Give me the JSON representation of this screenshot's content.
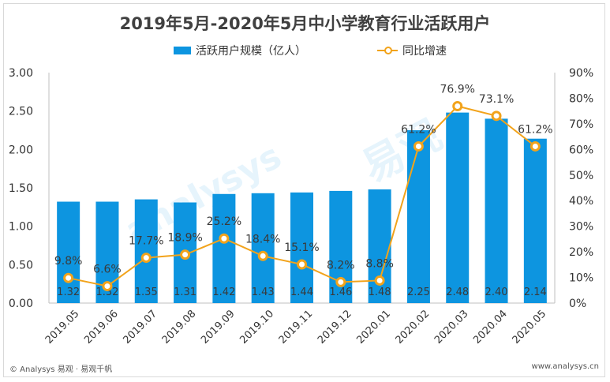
{
  "title": "2019年5月-2020年5月中小学教育行业活跃用户",
  "legend": {
    "bar_label": "活跃用户规模（亿人）",
    "line_label": "同比增速"
  },
  "footer": {
    "left": "© Analysys 易观 · 易观千帆",
    "right": "www.analysys.cn"
  },
  "watermark": {
    "text1": "analysys",
    "text2": "易观"
  },
  "colors": {
    "bar": "#0d95e0",
    "line": "#f2a31b",
    "axis_text": "#333333"
  },
  "chart_data": {
    "type": "bar",
    "categories": [
      "2019.05",
      "2019.06",
      "2019.07",
      "2019.08",
      "2019.09",
      "2019.10",
      "2019.11",
      "2019.12",
      "2020.01",
      "2020.02",
      "2020.03",
      "2020.04",
      "2020.05"
    ],
    "series": [
      {
        "name": "活跃用户规模（亿人）",
        "type": "bar",
        "axis": "left",
        "values": [
          1.32,
          1.32,
          1.35,
          1.31,
          1.42,
          1.43,
          1.44,
          1.46,
          1.48,
          2.25,
          2.48,
          2.4,
          2.14
        ],
        "labels": [
          "1.32",
          "1.32",
          "1.35",
          "1.31",
          "1.42",
          "1.43",
          "1.44",
          "1.46",
          "1.48",
          "2.25",
          "2.48",
          "2.40",
          "2.14"
        ]
      },
      {
        "name": "同比增速",
        "type": "line",
        "axis": "right",
        "values": [
          9.8,
          6.6,
          17.7,
          18.9,
          25.2,
          18.4,
          15.1,
          8.2,
          8.8,
          61.2,
          76.9,
          73.1,
          61.2
        ],
        "labels": [
          "9.8%",
          "6.6%",
          "17.7%",
          "18.9%",
          "25.2%",
          "18.4%",
          "15.1%",
          "8.2%",
          "8.8%",
          "61.2%",
          "76.9%",
          "73.1%",
          "61.2%"
        ]
      }
    ],
    "y_left": {
      "min": 0,
      "max": 3,
      "ticks": [
        "0.00",
        "0.50",
        "1.00",
        "1.50",
        "2.00",
        "2.50",
        "3.00"
      ]
    },
    "y_right": {
      "min": 0,
      "max": 90,
      "ticks": [
        "0%",
        "10%",
        "20%",
        "30%",
        "40%",
        "50%",
        "60%",
        "70%",
        "80%",
        "90%"
      ]
    },
    "title": "2019年5月-2020年5月中小学教育行业活跃用户",
    "xlabel": "",
    "ylabel": ""
  }
}
